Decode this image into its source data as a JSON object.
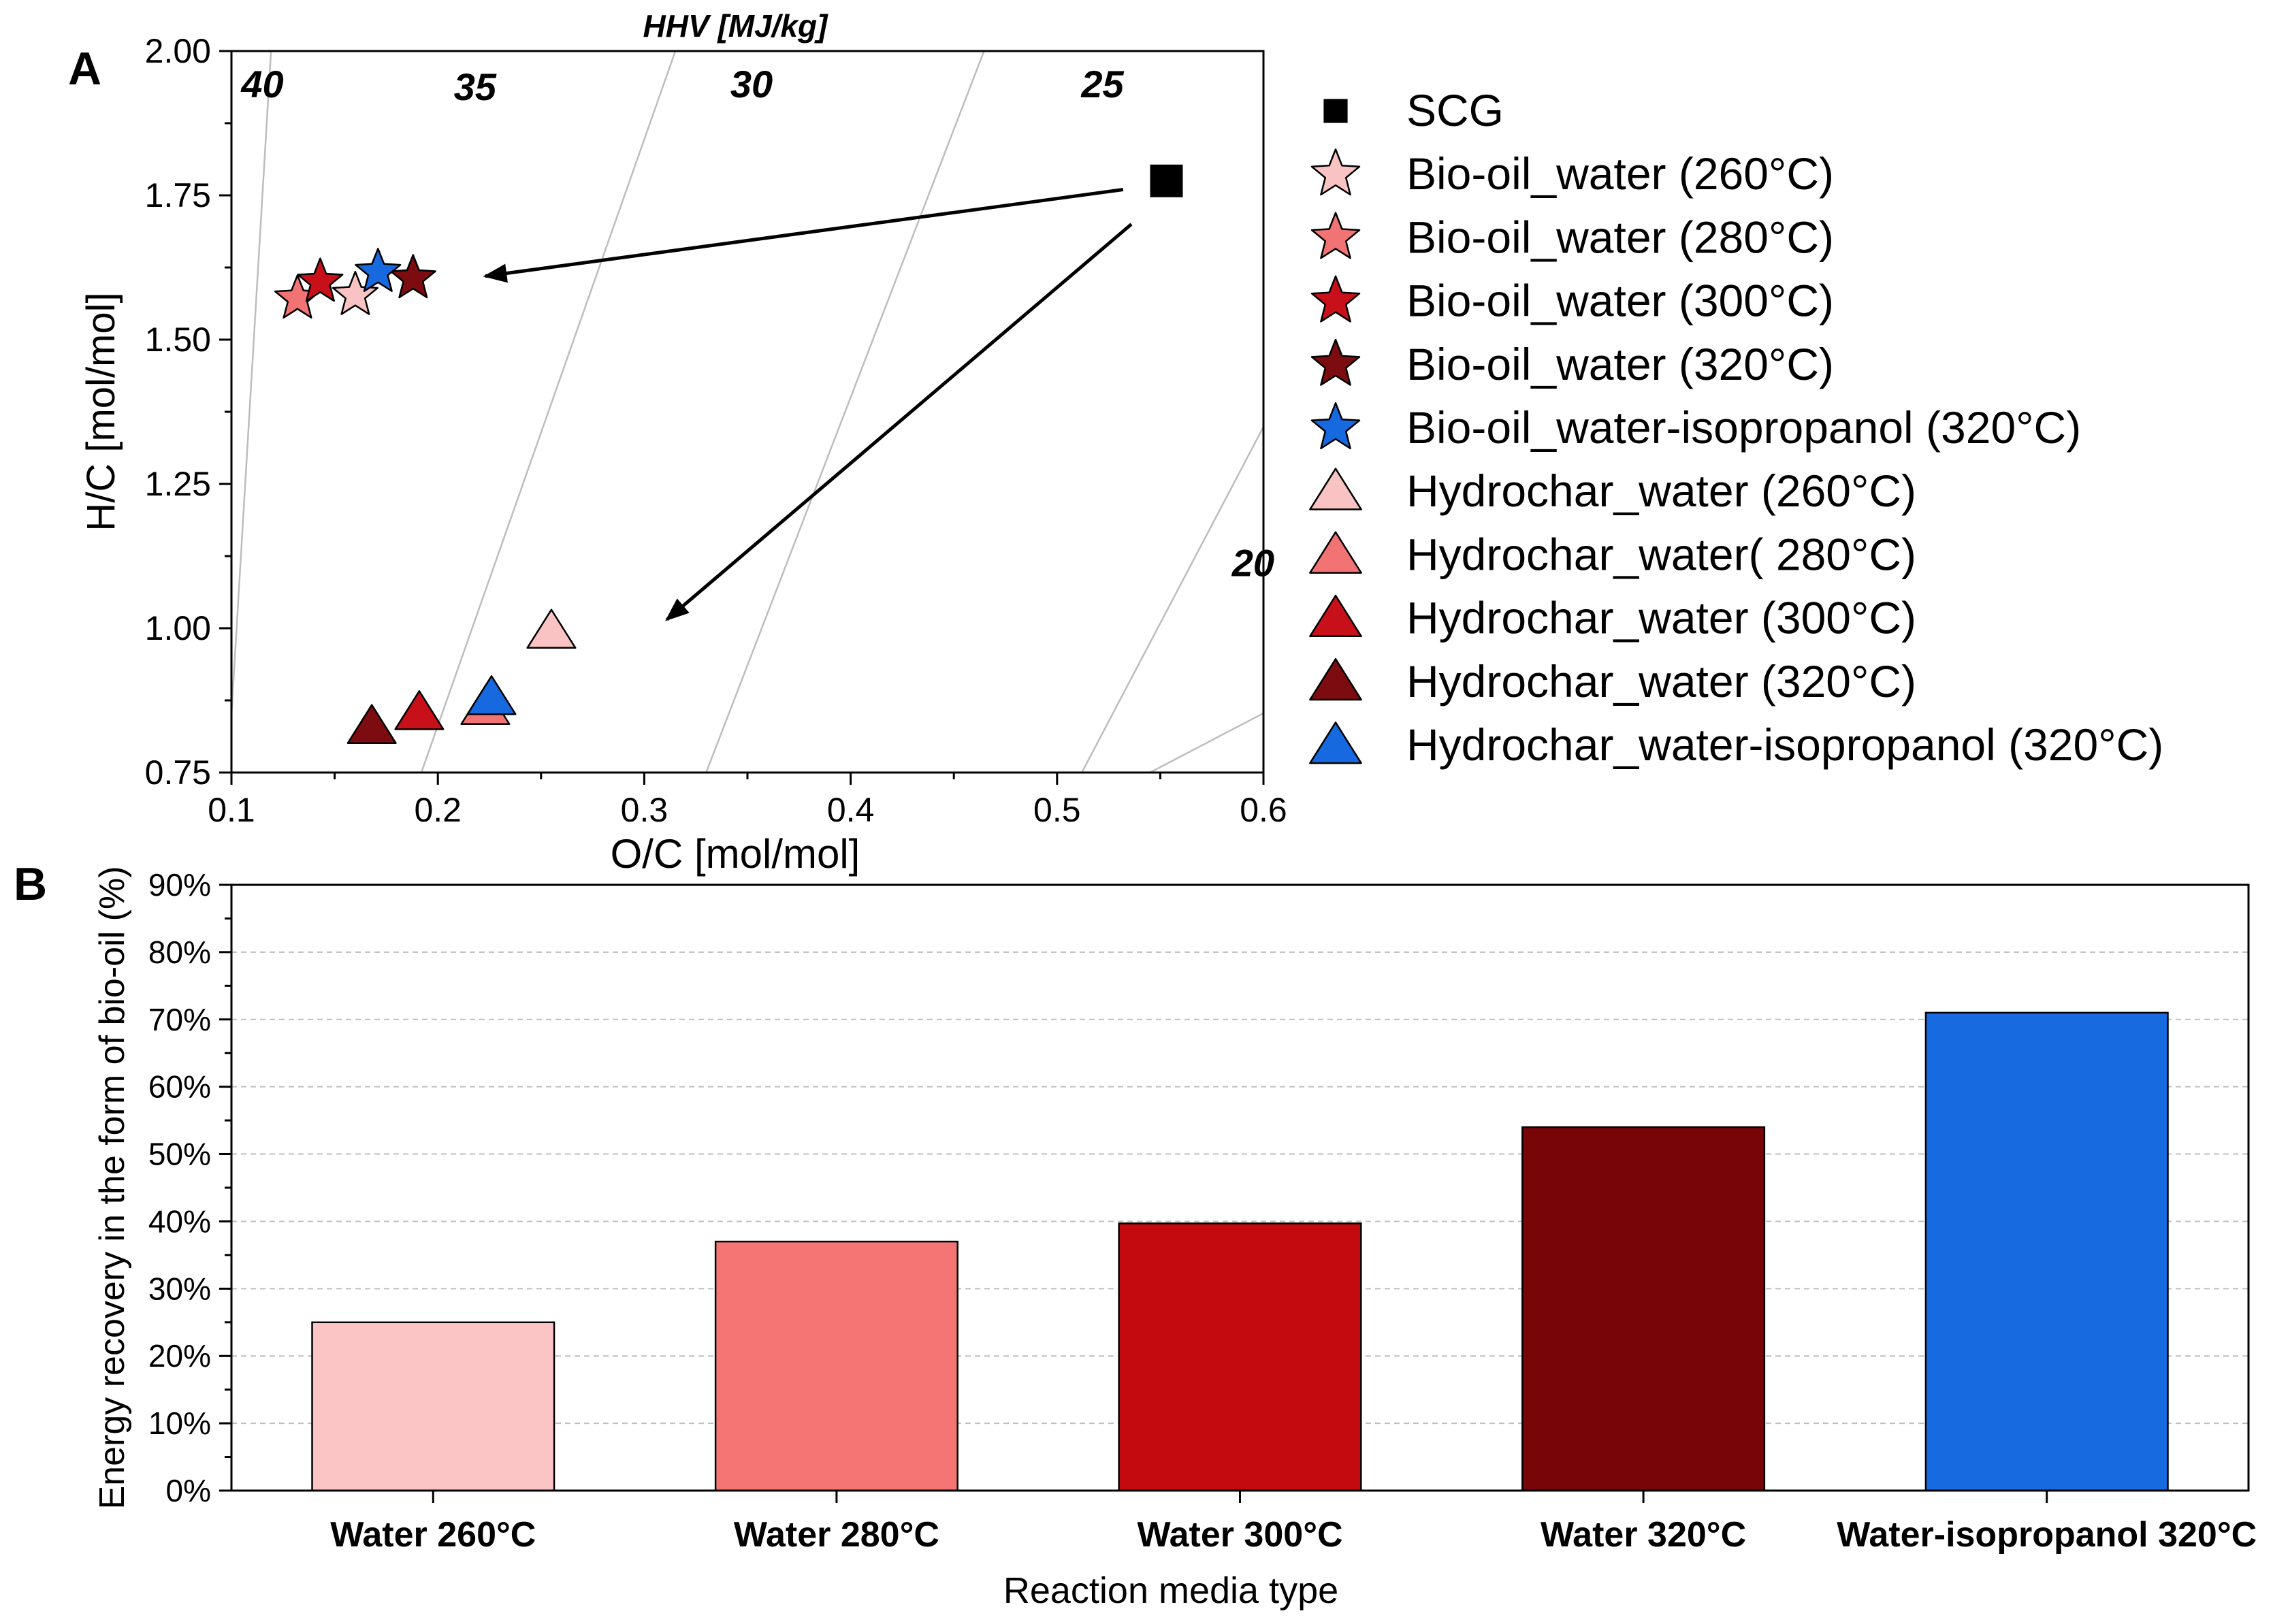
{
  "chart_data": [
    {
      "type": "scatter",
      "panel_label": "A",
      "title": "HHV [MJ/kg]",
      "xlabel": "O/C [mol/mol]",
      "ylabel": "H/C [mol/mol]",
      "xlim": [
        0.1,
        0.6
      ],
      "ylim": [
        0.75,
        2.0
      ],
      "xticks": [
        0.1,
        0.2,
        0.3,
        0.4,
        0.5,
        0.6
      ],
      "xtick_labels": [
        "0.1",
        "0.2",
        "0.3",
        "0.4",
        "0.5",
        "0.6"
      ],
      "yticks": [
        0.75,
        1.0,
        1.25,
        1.5,
        1.75,
        2.0
      ],
      "ytick_labels": [
        "0.75",
        "1.00",
        "1.25",
        "1.50",
        "1.75",
        "2.00"
      ],
      "grid": false,
      "legend_position": "right",
      "iso_hhv_lines": [
        {
          "label": "40",
          "a": 0.2,
          "b": 1.4
        },
        {
          "label": "35",
          "a": 0.32,
          "b": 1.44
        },
        {
          "label": "30",
          "a": 0.47,
          "b": 1.51
        },
        {
          "label": "25",
          "a": 0.703,
          "b": 1.72
        },
        {
          "label": "20",
          "a": 1.025,
          "b": 1.84
        }
      ],
      "series": [
        {
          "name": "SCG",
          "marker": "square",
          "color": "#000000",
          "x": 0.553,
          "y": 1.775
        },
        {
          "name": "Bio-oil_water (260°C)",
          "marker": "star",
          "color": "#f9c3c3",
          "x": 0.16,
          "y": 1.577
        },
        {
          "name": "Bio-oil_water (280°C)",
          "marker": "star",
          "color": "#f27373",
          "x": 0.132,
          "y": 1.571
        },
        {
          "name": "Bio-oil_water (300°C)",
          "marker": "star",
          "color": "#c8101a",
          "x": 0.143,
          "y": 1.6
        },
        {
          "name": "Bio-oil_water (320°C)",
          "marker": "star",
          "color": "#7c0c10",
          "x": 0.188,
          "y": 1.606
        },
        {
          "name": "Bio-oil_water-isopropanol (320°C)",
          "marker": "star",
          "color": "#1769e0",
          "x": 0.171,
          "y": 1.617
        },
        {
          "name": "Hydrochar_water (260°C)",
          "marker": "triangle",
          "color": "#f9c3c3",
          "x": 0.255,
          "y": 0.995
        },
        {
          "name": "Hydrochar_water( 280°C)",
          "marker": "triangle",
          "color": "#f27373",
          "x": 0.223,
          "y": 0.863
        },
        {
          "name": "Hydrochar_water (300°C)",
          "marker": "triangle",
          "color": "#c8101a",
          "x": 0.191,
          "y": 0.854
        },
        {
          "name": "Hydrochar_water (320°C)",
          "marker": "triangle",
          "color": "#7c0c10",
          "x": 0.168,
          "y": 0.83
        },
        {
          "name": "Hydrochar_water-isopropanol (320°C)",
          "marker": "triangle",
          "color": "#1769e0",
          "x": 0.226,
          "y": 0.88
        }
      ],
      "annotations": [
        {
          "type": "arrow",
          "from": [
            0.532,
            1.76
          ],
          "to": [
            0.223,
            1.61
          ]
        },
        {
          "type": "arrow",
          "from": [
            0.536,
            1.7
          ],
          "to": [
            0.311,
            1.015
          ]
        }
      ]
    },
    {
      "type": "bar",
      "panel_label": "B",
      "xlabel": "Reaction media type",
      "ylabel": "Energy recovery in the form of bio-oil (%)",
      "ylim": [
        0,
        90
      ],
      "yticks": [
        0,
        10,
        20,
        30,
        40,
        50,
        60,
        70,
        80,
        90
      ],
      "ytick_labels": [
        "0%",
        "10%",
        "20%",
        "30%",
        "40%",
        "50%",
        "60%",
        "70%",
        "80%",
        "90%"
      ],
      "grid": true,
      "categories": [
        "Water 260°C",
        "Water 280°C",
        "Water 300°C",
        "Water 320°C",
        "Water-isopropanol 320°C"
      ],
      "values": [
        25,
        37,
        39.7,
        54,
        71
      ],
      "colors": [
        "#fcc5c5",
        "#f57575",
        "#c40a0f",
        "#780609",
        "#176ae0"
      ]
    }
  ]
}
